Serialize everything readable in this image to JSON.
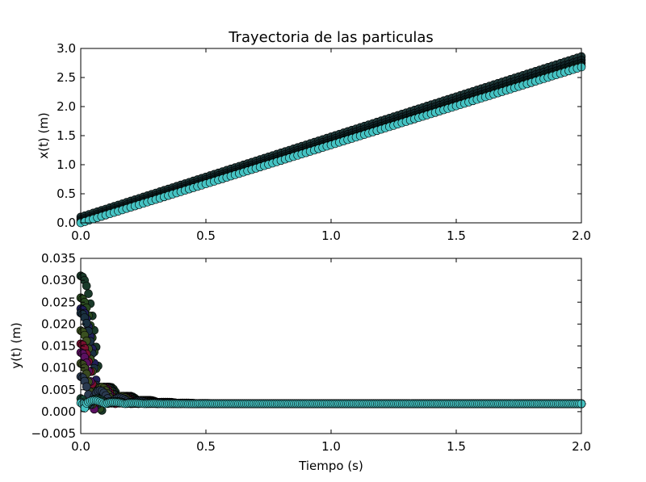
{
  "chart_data": [
    {
      "type": "scatter",
      "title": "Trayectoria de las particulas",
      "xlabel": "",
      "ylabel": "x(t) (m)",
      "xlim": [
        0.0,
        2.0
      ],
      "ylim": [
        0.0,
        3.0
      ],
      "xticks": [
        "0.0",
        "0.5",
        "1.0",
        "1.5",
        "2.0"
      ],
      "yticks": [
        "0.0",
        "0.5",
        "1.0",
        "1.5",
        "2.0",
        "2.5",
        "3.0"
      ],
      "xtick_values": [
        0,
        0.5,
        1.0,
        1.5,
        2.0
      ],
      "ytick_values": [
        0,
        0.5,
        1.0,
        1.5,
        2.0,
        2.5,
        3.0
      ],
      "grid": false,
      "series": [
        {
          "color": "#1f3a3a",
          "x0": 0.0,
          "y0": 0.1,
          "x1": 2.0,
          "y1": 2.86
        },
        {
          "color": "#10262a",
          "x0": 0.0,
          "y0": 0.06,
          "x1": 2.0,
          "y1": 2.8
        },
        {
          "color": "#0a1c1c",
          "x0": 0.0,
          "y0": 0.03,
          "x1": 2.0,
          "y1": 2.75
        },
        {
          "color": "#173a30",
          "x0": 0.0,
          "y0": 0.0,
          "x1": 2.0,
          "y1": 2.7
        },
        {
          "color": "#45c3c3",
          "x0": 0.0,
          "y0": 0.0,
          "x1": 2.0,
          "y1": 2.68
        }
      ]
    },
    {
      "type": "scatter",
      "title": "",
      "xlabel": "Tiempo (s)",
      "ylabel": "y(t) (m)",
      "xlim": [
        0.0,
        2.0
      ],
      "ylim": [
        -0.005,
        0.035
      ],
      "xticks": [
        "0.0",
        "0.5",
        "1.0",
        "1.5",
        "2.0"
      ],
      "yticks": [
        "−0.005",
        "0.000",
        "0.005",
        "0.010",
        "0.015",
        "0.020",
        "0.025",
        "0.030",
        "0.035"
      ],
      "xtick_values": [
        0,
        0.5,
        1.0,
        1.5,
        2.0
      ],
      "ytick_values": [
        -0.005,
        0,
        0.005,
        0.01,
        0.015,
        0.02,
        0.025,
        0.03,
        0.035
      ],
      "grid": false,
      "series": [
        {
          "color": "#1a3a2a",
          "h0": 0.031,
          "tfall": 0.085
        },
        {
          "color": "#2a4a20",
          "h0": 0.026,
          "tfall": 0.078
        },
        {
          "color": "#20205a",
          "h0": 0.0235,
          "tfall": 0.074
        },
        {
          "color": "#1a3040",
          "h0": 0.0225,
          "tfall": 0.072
        },
        {
          "color": "#3a5020",
          "h0": 0.0185,
          "tfall": 0.065
        },
        {
          "color": "#7a1030",
          "h0": 0.0155,
          "tfall": 0.06
        },
        {
          "color": "#5a1060",
          "h0": 0.0135,
          "tfall": 0.055
        },
        {
          "color": "#3a4a20",
          "h0": 0.011,
          "tfall": 0.05
        },
        {
          "color": "#2a3a50",
          "h0": 0.008,
          "tfall": 0.043
        },
        {
          "color": "#1a4a3a",
          "h0": 0.003,
          "tfall": 0.03
        },
        {
          "color": "#45c3c3",
          "h0": 0.002,
          "tfall": 0.02
        }
      ],
      "settle_y": 0.0018
    }
  ]
}
